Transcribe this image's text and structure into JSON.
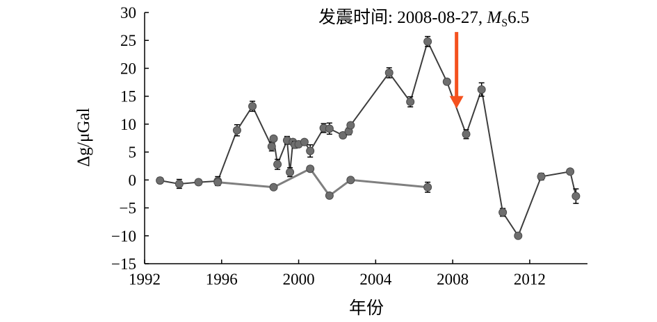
{
  "chart_data": {
    "type": "line",
    "xlabel": "年份",
    "ylabel": "Δg/μGal",
    "xlim": [
      1992,
      2015
    ],
    "ylim": [
      -15,
      30
    ],
    "x_ticks": [
      "1992",
      "1996",
      "2000",
      "2004",
      "2008",
      "2012"
    ],
    "y_ticks": [
      "30",
      "25",
      "20",
      "15",
      "10",
      "5",
      "0",
      "−5",
      "−10",
      "−15"
    ],
    "annotation": {
      "text_prefix": "发震时间: 2008-08-27, ",
      "text_italic": "M",
      "text_sub": "S",
      "text_suffix": "6.5",
      "arrow_x": 2008.2,
      "arrow_from_y": 26.5,
      "arrow_to_y": 12.8,
      "color": "#f4511e"
    },
    "series": [
      {
        "color": "#3d3d3d",
        "points": [
          [
            1992.8,
            -0.1,
            0.5
          ],
          [
            1993.8,
            -0.7,
            0.8
          ],
          [
            1994.8,
            -0.4,
            0.5
          ],
          [
            1995.8,
            -0.2,
            0.8
          ],
          [
            1996.8,
            8.9,
            1.0
          ],
          [
            1997.6,
            13.2,
            0.9
          ],
          [
            1998.6,
            6.0,
            0.8
          ],
          [
            1998.7,
            7.4,
            0.4
          ],
          [
            1998.9,
            2.8,
            0.9
          ],
          [
            1999.4,
            7.1,
            0.7
          ],
          [
            1999.55,
            1.4,
            0.8
          ],
          [
            1999.7,
            6.8,
            0.5
          ],
          [
            1999.8,
            6.3,
            0.6
          ],
          [
            2000.0,
            6.4,
            0.5
          ],
          [
            2000.3,
            6.8,
            0.4
          ],
          [
            2000.6,
            5.2,
            1.1
          ],
          [
            2001.3,
            9.3,
            0.8
          ],
          [
            2001.6,
            9.2,
            1.0
          ],
          [
            2002.3,
            8.0,
            0.5
          ],
          [
            2002.6,
            8.7,
            0.6
          ],
          [
            2002.7,
            9.8,
            0.5
          ],
          [
            2004.7,
            19.2,
            0.9
          ],
          [
            2005.8,
            14.0,
            0.9
          ],
          [
            2006.7,
            24.8,
            0.9
          ],
          [
            2007.7,
            17.6,
            0.5
          ],
          [
            2008.7,
            8.2,
            0.8
          ],
          [
            2009.5,
            16.2,
            1.2
          ],
          [
            2010.6,
            -5.8,
            0.7
          ],
          [
            2011.4,
            -10.0,
            0.4
          ],
          [
            2012.6,
            0.6,
            0.6
          ],
          [
            2014.1,
            1.5,
            0.4
          ],
          [
            2014.4,
            -2.9,
            1.3
          ]
        ]
      },
      {
        "color": "#7f7f7f",
        "points": [
          [
            1995.8,
            -0.4,
            0.5
          ],
          [
            1998.7,
            -1.3,
            0.4
          ],
          [
            2000.6,
            2.0,
            0.5
          ],
          [
            2001.6,
            -2.8,
            0.4
          ],
          [
            2002.7,
            0.0,
            0.4
          ],
          [
            2006.7,
            -1.3,
            0.9
          ]
        ]
      }
    ]
  }
}
